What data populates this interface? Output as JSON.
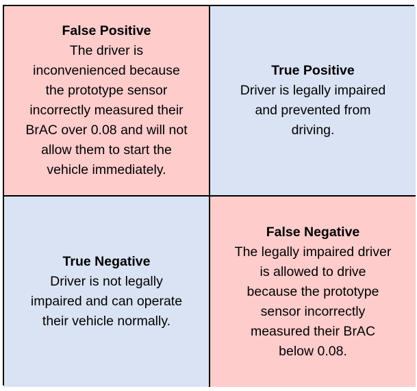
{
  "colors": {
    "false_cell": "#ffcccc",
    "true_cell": "#dae3f3",
    "border": "#000000"
  },
  "quadrants": {
    "top_left": {
      "title": "False Positive",
      "body": "The driver is\ninconvenienced because\nthe prototype sensor\nincorrectly measured their\nBrAC over 0.08 and will not\nallow them to start the\nvehicle immediately."
    },
    "top_right": {
      "title": "True Positive",
      "body": "Driver is legally impaired\nand prevented from\ndriving."
    },
    "bottom_left": {
      "title": "True Negative",
      "body": "Driver is not legally\nimpaired and can operate\ntheir vehicle normally."
    },
    "bottom_right": {
      "title": "False Negative",
      "body": "The legally impaired driver\nis allowed to drive\nbecause the prototype\nsensor incorrectly\nmeasured their BrAC\nbelow 0.08."
    }
  }
}
